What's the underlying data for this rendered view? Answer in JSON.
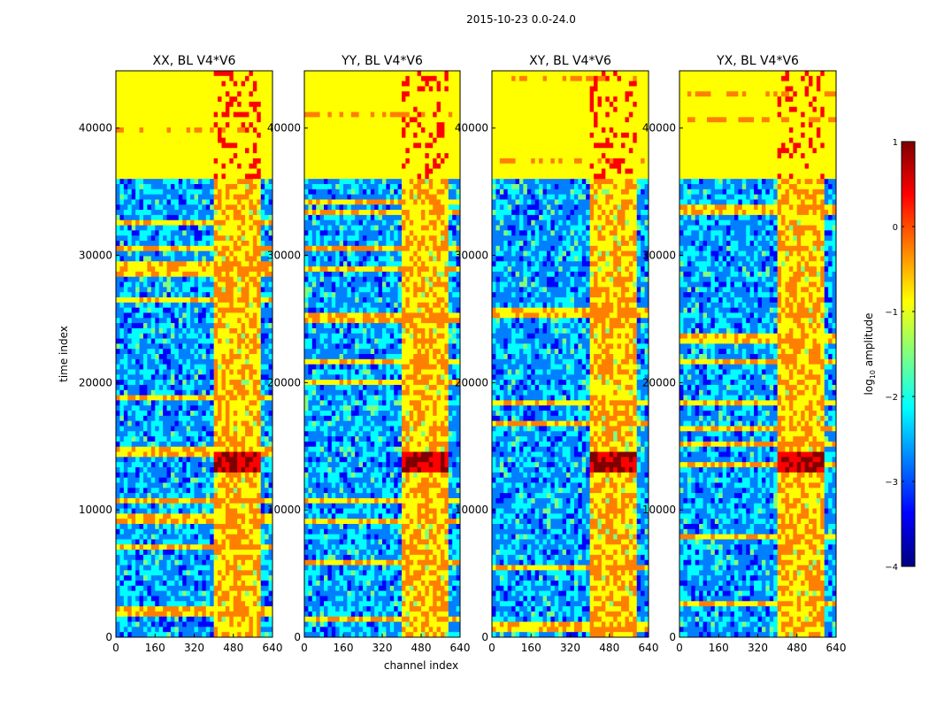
{
  "figure": {
    "suptitle": "2015-10-23 0.0-24.0"
  },
  "chart_data": {
    "type": "heatmap",
    "xlabel": "channel index",
    "ylabel": "time index",
    "xlim": [
      0,
      640
    ],
    "ylim": [
      0,
      44500
    ],
    "xticks": [
      "0",
      "160",
      "320",
      "480",
      "640"
    ],
    "yticks": [
      "0",
      "10000",
      "20000",
      "30000",
      "40000"
    ],
    "panels": [
      {
        "id": "xx",
        "title": "XX, BL V4*V6"
      },
      {
        "id": "yy",
        "title": "YY, BL V4*V6"
      },
      {
        "id": "xy",
        "title": "XY, BL V4*V6"
      },
      {
        "id": "yx",
        "title": "YX, BL V4*V6"
      }
    ],
    "colorbar": {
      "label_prefix": "log",
      "label_sub": "10",
      "label_suffix": " amplitude",
      "range": [
        -4,
        1
      ],
      "ticks": [
        "1",
        "0",
        "−1",
        "−2",
        "−3",
        "−4"
      ],
      "colormap": "jet",
      "colors": [
        "#00007f",
        "#0000ff",
        "#007fff",
        "#00ffff",
        "#7fff7f",
        "#ffff00",
        "#ff7f00",
        "#ff0000",
        "#7f0000"
      ]
    },
    "structure": {
      "bright_channel_range": [
        405,
        595
      ],
      "saturated_time_range": [
        36200,
        44300
      ],
      "bright_time_band": [
        12800,
        14600
      ]
    }
  }
}
